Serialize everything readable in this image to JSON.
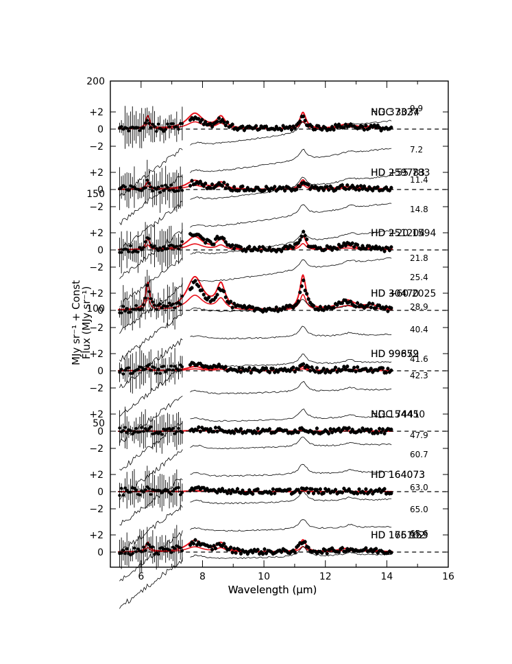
{
  "chart_data": {
    "type": "line",
    "title": "",
    "xlabel": "Wavelength (µm)",
    "xlabel_overlay": "Wavelength (µm)",
    "ylabel": "MJy sr⁻¹ + Const",
    "ylabel_overlay": "Flux (MJy sr⁻¹)",
    "xlim": [
      5,
      16
    ],
    "x_ticks": [
      6,
      8,
      10,
      12,
      14,
      16
    ],
    "left_axis_labels": [
      "200",
      "150",
      "100",
      "50"
    ],
    "panel_offsets": [
      2,
      0,
      -2
    ],
    "panel_tick_labels": [
      "+2",
      "0",
      "−2"
    ],
    "panels": [
      {
        "name": "NGC 3034",
        "name_overlay": "HD 37327",
        "fit_peak": 1.9,
        "obs_peak": 1.4
      },
      {
        "name": "HD 259783",
        "name_overlay": "HD +55 783",
        "fit_peak": 1.1,
        "obs_peak": 0.9
      },
      {
        "name": "HD 251204",
        "name_overlay": "HD +20 1594",
        "fit_peak": 1.6,
        "obs_peak": 2.0
      },
      {
        "name": "HD +60 2025",
        "name_overlay": "HD 30470",
        "fit_peak": 4.0,
        "obs_peak": 3.2
      },
      {
        "name": "HD 99872",
        "name_overlay": "HD 99659",
        "fit_peak": 0.5,
        "obs_peak": 0.8
      },
      {
        "name": "NGC 7441",
        "name_overlay": "HD 154450",
        "fit_peak": 0.1,
        "obs_peak": 0.3
      },
      {
        "name": "HD 164073",
        "name_overlay": "HD 164073",
        "fit_peak": 0.1,
        "obs_peak": 0.3
      },
      {
        "name": "HD 165162",
        "name_overlay": "HD 176 153",
        "fit_peak": 1.4,
        "obs_peak": 1.2
      }
    ],
    "separation_labels": [
      "9.9",
      "7.2",
      "11.4",
      "14.8",
      "21.8",
      "25.4",
      "28.9",
      "40.4",
      "41.6",
      "42.3",
      "47.9",
      "60.7",
      "63.0",
      "65.0",
      "65.6"
    ],
    "pah_features_um": [
      6.2,
      7.7,
      8.6,
      11.3,
      12.7
    ],
    "series": [
      {
        "name": "observed spectrum",
        "style": "black dots with error bars"
      },
      {
        "name": "PAH model fit",
        "style": "red line"
      },
      {
        "name": "reference spectra",
        "style": "thin black line"
      },
      {
        "name": "zero level",
        "style": "dashed"
      }
    ],
    "colors": {
      "fit": "#e8101a",
      "data": "#000000"
    }
  }
}
